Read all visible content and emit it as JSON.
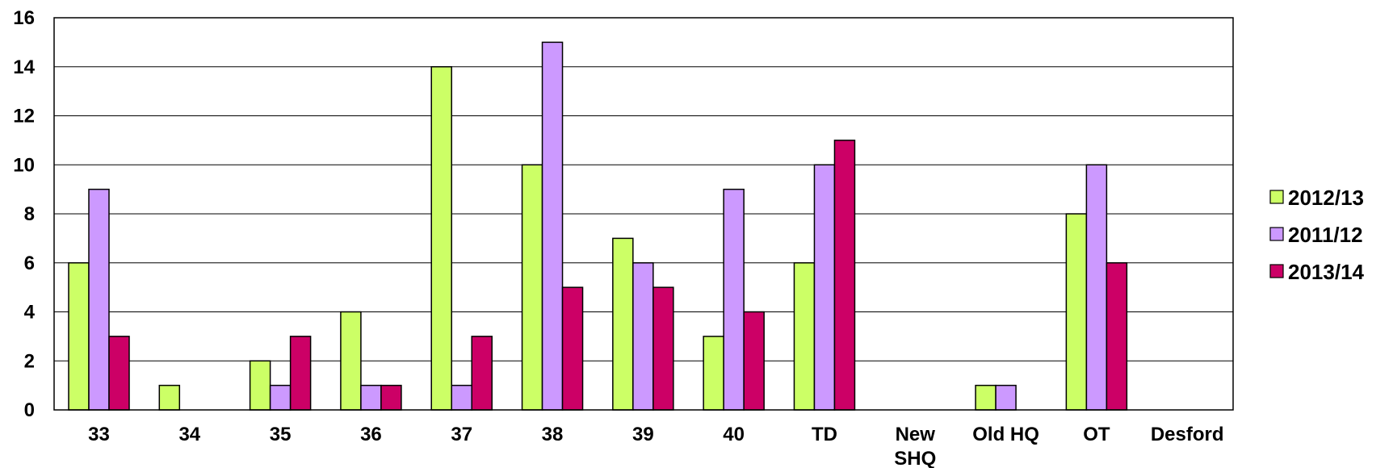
{
  "chart_data": {
    "type": "bar",
    "categories": [
      "33",
      "34",
      "35",
      "36",
      "37",
      "38",
      "39",
      "40",
      "TD",
      "New SHQ",
      "Old HQ",
      "OT",
      "Desford"
    ],
    "series": [
      {
        "name": "2012/13",
        "color": "#ccff66",
        "values": [
          6,
          1,
          2,
          4,
          14,
          10,
          7,
          3,
          6,
          0,
          1,
          8,
          0
        ]
      },
      {
        "name": "2011/12",
        "color": "#cc99ff",
        "values": [
          9,
          0,
          1,
          1,
          1,
          15,
          6,
          9,
          10,
          0,
          1,
          10,
          0
        ]
      },
      {
        "name": "2013/14",
        "color": "#cc0066",
        "values": [
          3,
          0,
          3,
          1,
          3,
          5,
          5,
          4,
          11,
          0,
          0,
          6,
          0
        ]
      }
    ],
    "ylim": [
      0,
      16
    ],
    "yticks": [
      "0",
      "2",
      "4",
      "6",
      "8",
      "10",
      "12",
      "14",
      "16"
    ],
    "grid": true,
    "legend_position": "right"
  }
}
